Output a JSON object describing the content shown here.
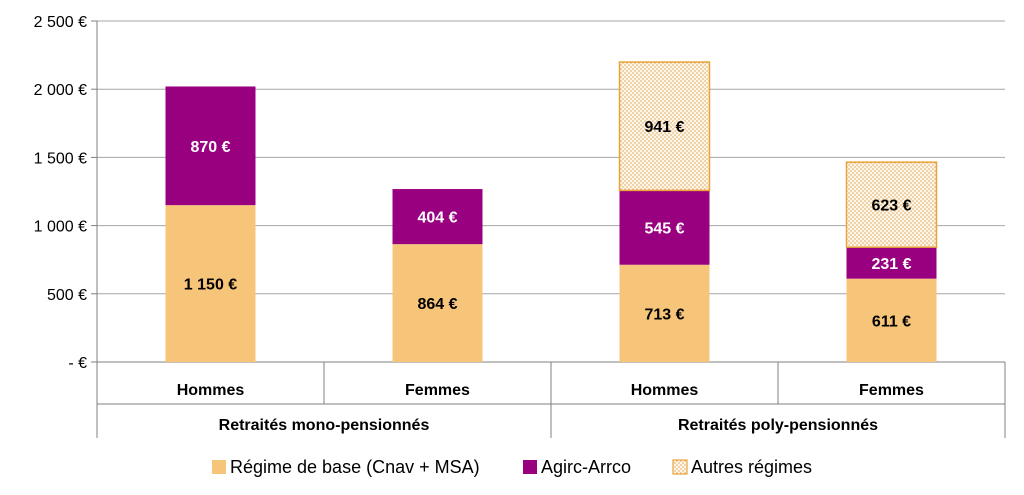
{
  "chart_data": {
    "type": "bar",
    "stacked": true,
    "title": "",
    "xlabel": "",
    "ylabel": "",
    "ylim": [
      0,
      2500
    ],
    "y_ticks": [
      0,
      500,
      1000,
      1500,
      2000,
      2500
    ],
    "y_tick_labels": [
      "-  €",
      "500 €",
      "1 000 €",
      "1 500 €",
      "2 000 €",
      "2 500 €"
    ],
    "grid": true,
    "legend_position": "bottom",
    "categories": [
      "Hommes",
      "Femmes",
      "Hommes",
      "Femmes"
    ],
    "groups": [
      {
        "label": "Retraités mono-pensionnés",
        "categories": [
          "Hommes",
          "Femmes"
        ]
      },
      {
        "label": "Retraités poly-pensionnés",
        "categories": [
          "Hommes",
          "Femmes"
        ]
      }
    ],
    "series": [
      {
        "name": "Régime de base (Cnav + MSA)",
        "color": "#F7C57A",
        "values": [
          1150,
          864,
          713,
          611
        ],
        "labels": [
          "1 150 €",
          "864 €",
          "713 €",
          "611 €"
        ],
        "label_color": "#000000",
        "pattern": "solid"
      },
      {
        "name": "Agirc-Arrco",
        "color": "#990080",
        "values": [
          870,
          404,
          545,
          231
        ],
        "labels": [
          "870 €",
          "404 €",
          "545 €",
          "231 €"
        ],
        "label_color": "#ffffff",
        "pattern": "solid"
      },
      {
        "name": "Autres régimes",
        "color": "#E8A33A",
        "values": [
          null,
          null,
          941,
          623
        ],
        "labels": [
          "",
          "",
          "941 €",
          "623 €"
        ],
        "label_color": "#000000",
        "pattern": "dotted"
      }
    ]
  }
}
